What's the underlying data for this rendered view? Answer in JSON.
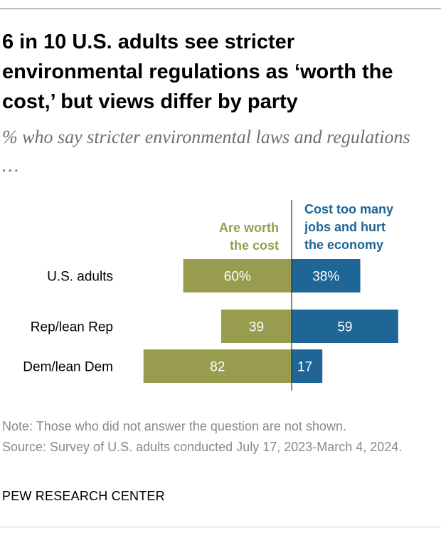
{
  "title": "6 in 10 U.S. adults see stricter environmental regulations as ‘worth the cost,’ but views differ by party",
  "subtitle": "% who say stricter environmental laws and regulations …",
  "note": "Note: Those who did not answer the question are not shown.",
  "source": "Source: Survey of U.S. adults conducted July 17, 2023-March 4, 2024.",
  "brand": "PEW RESEARCH CENTER",
  "colors": {
    "worth": "#989c4e",
    "cost": "#1f6595",
    "text": "#000000",
    "muted": "#8a8a8a"
  },
  "chart_data": {
    "type": "bar",
    "orientation": "diverging-horizontal",
    "title": "6 in 10 U.S. adults see stricter environmental regulations as ‘worth the cost,’ but views differ by party",
    "subtitle": "% who say stricter environmental laws and regulations …",
    "categories": [
      "U.S. adults",
      "Rep/lean Rep",
      "Dem/lean Dem"
    ],
    "series": [
      {
        "name": "Are worth the cost",
        "header_lines": [
          "Are worth",
          "the cost"
        ],
        "values": [
          60,
          39,
          82
        ],
        "labels": [
          "60%",
          "39",
          "82"
        ],
        "side": "left"
      },
      {
        "name": "Cost too many jobs and hurt the economy",
        "header_lines": [
          "Cost too many",
          "jobs and hurt",
          "the economy"
        ],
        "values": [
          38,
          59,
          17
        ],
        "labels": [
          "38%",
          "59",
          "17"
        ],
        "side": "right"
      }
    ],
    "unit": "%",
    "xlim": [
      0,
      100
    ],
    "grid": false,
    "legend": "top"
  }
}
